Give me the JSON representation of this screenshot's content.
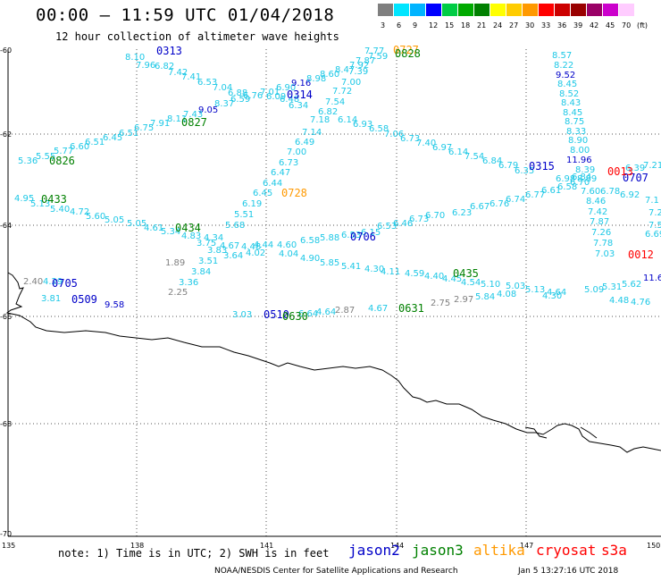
{
  "header": {
    "title": "00:00 – 11:59 UTC 01/04/2018",
    "subtitle": "12 hour collection of altimeter wave heights"
  },
  "color_scale": {
    "unit_label": "(ft)",
    "bins": [
      {
        "label": "3",
        "color": "#7f7f7f"
      },
      {
        "label": "6",
        "color": "#00e5ff"
      },
      {
        "label": "9",
        "color": "#00b4ff"
      },
      {
        "label": "12",
        "color": "#0000ff"
      },
      {
        "label": "15",
        "color": "#00cc44"
      },
      {
        "label": "18",
        "color": "#00aa00"
      },
      {
        "label": "21",
        "color": "#008000"
      },
      {
        "label": "24",
        "color": "#ffff00"
      },
      {
        "label": "27",
        "color": "#ffcc00"
      },
      {
        "label": "30",
        "color": "#ff9900"
      },
      {
        "label": "33",
        "color": "#ff0000"
      },
      {
        "label": "36",
        "color": "#cc0000"
      },
      {
        "label": "39",
        "color": "#990000"
      },
      {
        "label": "42",
        "color": "#990066"
      },
      {
        "label": "45",
        "color": "#cc00cc"
      },
      {
        "label": "70",
        "color": "#ffccff"
      }
    ]
  },
  "axes": {
    "lat_labels": [
      "-60",
      "-62",
      "-64",
      "-66",
      "-68",
      "-70"
    ],
    "lon_labels": [
      "135",
      "138",
      "141",
      "144",
      "147",
      "150"
    ]
  },
  "colors": {
    "cyan": "#1ec8e6",
    "navy": "#0000c8",
    "green": "#008000",
    "orange": "#ff9900",
    "red": "#ff0000",
    "gray": "#808080"
  },
  "wave_points": [
    [
      "8.10",
      140,
      60,
      "cyan"
    ],
    [
      "7.96",
      152,
      69,
      "cyan"
    ],
    [
      "6.82",
      173,
      70,
      "cyan"
    ],
    [
      "7.42",
      188,
      77,
      "cyan"
    ],
    [
      "7.41",
      203,
      82,
      "cyan"
    ],
    [
      "6.53",
      221,
      88,
      "cyan"
    ],
    [
      "7.04",
      238,
      94,
      "cyan"
    ],
    [
      "6.88",
      255,
      100,
      "cyan"
    ],
    [
      "6.76",
      272,
      103,
      "cyan"
    ],
    [
      "7.01",
      291,
      99,
      "cyan"
    ],
    [
      "6.90",
      309,
      94,
      "cyan"
    ],
    [
      "9.16",
      326,
      89,
      "navy"
    ],
    [
      "8.98",
      343,
      84,
      "cyan"
    ],
    [
      "8.60",
      358,
      79,
      "cyan"
    ],
    [
      "8.47",
      375,
      74,
      "cyan"
    ],
    [
      "7.92",
      391,
      69,
      "cyan"
    ],
    [
      "7.87",
      398,
      64,
      "cyan"
    ],
    [
      "7.59",
      412,
      59,
      "cyan"
    ],
    [
      "7.77",
      408,
      53,
      "cyan"
    ],
    [
      "7.39",
      390,
      76,
      "cyan"
    ],
    [
      "7.00",
      382,
      88,
      "cyan"
    ],
    [
      "7.72",
      372,
      98,
      "cyan"
    ],
    [
      "7.54",
      364,
      110,
      "cyan"
    ],
    [
      "6.82",
      356,
      121,
      "cyan"
    ],
    [
      "7.18",
      347,
      130,
      "cyan"
    ],
    [
      "7.14",
      338,
      144,
      "cyan"
    ],
    [
      "6.49",
      330,
      155,
      "cyan"
    ],
    [
      "7.00",
      321,
      166,
      "cyan"
    ],
    [
      "6.73",
      312,
      178,
      "cyan"
    ],
    [
      "6.47",
      303,
      189,
      "cyan"
    ],
    [
      "6.44",
      294,
      201,
      "cyan"
    ],
    [
      "6.45",
      283,
      212,
      "cyan"
    ],
    [
      "6.19",
      271,
      224,
      "cyan"
    ],
    [
      "5.51",
      262,
      236,
      "cyan"
    ],
    [
      "5.68",
      252,
      248,
      "cyan"
    ],
    [
      "6.34",
      323,
      114,
      "cyan"
    ],
    [
      "6.48",
      313,
      107,
      "cyan"
    ],
    [
      "6.09",
      298,
      104,
      "cyan"
    ],
    [
      "6.59",
      258,
      107,
      "cyan"
    ],
    [
      "8.37",
      240,
      112,
      "cyan"
    ],
    [
      "9.05",
      222,
      119,
      "navy"
    ],
    [
      "7.43",
      205,
      124,
      "cyan"
    ],
    [
      "8.11",
      187,
      129,
      "cyan"
    ],
    [
      "7.91",
      168,
      134,
      "cyan"
    ],
    [
      "6.75",
      150,
      139,
      "cyan"
    ],
    [
      "6.51",
      133,
      145,
      "cyan"
    ],
    [
      "6.45",
      115,
      150,
      "cyan"
    ],
    [
      "6.51",
      95,
      155,
      "cyan"
    ],
    [
      "6.60",
      78,
      160,
      "cyan"
    ],
    [
      "5.77",
      60,
      165,
      "cyan"
    ],
    [
      "5.55",
      40,
      171,
      "cyan"
    ],
    [
      "5.36",
      20,
      176,
      "cyan"
    ],
    [
      "6.14",
      378,
      130,
      "cyan"
    ],
    [
      "6.93",
      395,
      135,
      "cyan"
    ],
    [
      "6.58",
      413,
      140,
      "cyan"
    ],
    [
      "7.06",
      430,
      146,
      "cyan"
    ],
    [
      "6.73",
      448,
      151,
      "cyan"
    ],
    [
      "7.40",
      466,
      156,
      "cyan"
    ],
    [
      "6.97",
      484,
      161,
      "cyan"
    ],
    [
      "6.14",
      502,
      166,
      "cyan"
    ],
    [
      "7.54",
      520,
      171,
      "cyan"
    ],
    [
      "6.84",
      540,
      176,
      "cyan"
    ],
    [
      "6.79",
      558,
      181,
      "cyan"
    ],
    [
      "6.35",
      576,
      187,
      "cyan"
    ],
    [
      "4.95",
      16,
      218,
      "cyan"
    ],
    [
      "5.13",
      34,
      224,
      "cyan"
    ],
    [
      "5.40",
      56,
      230,
      "cyan"
    ],
    [
      "4.72",
      78,
      233,
      "cyan"
    ],
    [
      "5.60",
      96,
      238,
      "cyan"
    ],
    [
      "5.05",
      117,
      242,
      "cyan"
    ],
    [
      "5.05",
      142,
      246,
      "cyan"
    ],
    [
      "4.61",
      161,
      251,
      "cyan"
    ],
    [
      "5.34",
      180,
      255,
      "cyan"
    ],
    [
      "4.83",
      203,
      260,
      "cyan"
    ],
    [
      "4.34",
      228,
      262,
      "cyan"
    ],
    [
      "3.75",
      220,
      268,
      "cyan"
    ],
    [
      "4.67",
      246,
      271,
      "cyan"
    ],
    [
      "3.83",
      232,
      276,
      "cyan"
    ],
    [
      "4.48",
      270,
      272,
      "cyan"
    ],
    [
      "4.44",
      284,
      270,
      "cyan"
    ],
    [
      "4.60",
      310,
      270,
      "cyan"
    ],
    [
      "3.64",
      250,
      282,
      "cyan"
    ],
    [
      "4.02",
      275,
      279,
      "cyan"
    ],
    [
      "4.04",
      312,
      280,
      "cyan"
    ],
    [
      "3.51",
      222,
      288,
      "cyan"
    ],
    [
      "4.90",
      336,
      285,
      "cyan"
    ],
    [
      "3.84",
      214,
      300,
      "cyan"
    ],
    [
      "5.85",
      358,
      290,
      "cyan"
    ],
    [
      "5.41",
      382,
      294,
      "cyan"
    ],
    [
      "4.30",
      408,
      297,
      "cyan"
    ],
    [
      "4.11",
      426,
      300,
      "cyan"
    ],
    [
      "4.59",
      453,
      302,
      "cyan"
    ],
    [
      "4.40",
      475,
      305,
      "cyan"
    ],
    [
      "4.45",
      495,
      308,
      "cyan"
    ],
    [
      "4.54",
      516,
      312,
      "cyan"
    ],
    [
      "5.10",
      538,
      314,
      "cyan"
    ],
    [
      "5.03",
      566,
      316,
      "cyan"
    ],
    [
      "4.30",
      607,
      327,
      "cyan"
    ],
    [
      "5.13",
      588,
      320,
      "cyan"
    ],
    [
      "4.64",
      612,
      323,
      "cyan"
    ],
    [
      "5.09",
      654,
      320,
      "cyan"
    ],
    [
      "5.31",
      674,
      317,
      "cyan"
    ],
    [
      "5.62",
      696,
      314,
      "cyan"
    ],
    [
      "4.48",
      682,
      332,
      "cyan"
    ],
    [
      "4.76",
      706,
      334,
      "cyan"
    ],
    [
      "6.58",
      336,
      265,
      "cyan"
    ],
    [
      "5.88",
      358,
      262,
      "cyan"
    ],
    [
      "6.53",
      382,
      259,
      "cyan"
    ],
    [
      "6.15",
      404,
      256,
      "cyan"
    ],
    [
      "6.53",
      422,
      249,
      "cyan"
    ],
    [
      "6.46",
      440,
      246,
      "cyan"
    ],
    [
      "6.73",
      458,
      241,
      "cyan"
    ],
    [
      "6.70",
      476,
      237,
      "cyan"
    ],
    [
      "6.23",
      506,
      234,
      "cyan"
    ],
    [
      "6.67",
      526,
      227,
      "cyan"
    ],
    [
      "6.76",
      548,
      224,
      "cyan"
    ],
    [
      "6.74",
      566,
      219,
      "cyan"
    ],
    [
      "6.77",
      588,
      214,
      "cyan"
    ],
    [
      "6.61",
      606,
      209,
      "cyan"
    ],
    [
      "6.58",
      624,
      205,
      "cyan"
    ],
    [
      "6.70",
      638,
      200,
      "cyan"
    ],
    [
      "6.98",
      622,
      196,
      "cyan"
    ],
    [
      "6.84",
      640,
      194,
      "cyan"
    ],
    [
      "7.60",
      650,
      210,
      "cyan"
    ],
    [
      "6.78",
      672,
      210,
      "cyan"
    ],
    [
      "6.92",
      694,
      214,
      "cyan"
    ],
    [
      "7.21",
      720,
      181,
      "cyan"
    ],
    [
      "7.1",
      722,
      220,
      "cyan"
    ],
    [
      "7.2",
      726,
      234,
      "cyan"
    ],
    [
      "7.5",
      726,
      248,
      "cyan"
    ],
    [
      "6.69",
      722,
      258,
      "cyan"
    ],
    [
      "8.57",
      618,
      58,
      "cyan"
    ],
    [
      "8.22",
      620,
      69,
      "cyan"
    ],
    [
      "9.52",
      622,
      80,
      "navy"
    ],
    [
      "8.45",
      624,
      90,
      "cyan"
    ],
    [
      "8.52",
      626,
      101,
      "cyan"
    ],
    [
      "8.43",
      628,
      111,
      "cyan"
    ],
    [
      "8.45",
      630,
      122,
      "cyan"
    ],
    [
      "8.75",
      632,
      132,
      "cyan"
    ],
    [
      "8.33",
      634,
      143,
      "cyan"
    ],
    [
      "8.90",
      636,
      153,
      "cyan"
    ],
    [
      "8.00",
      638,
      164,
      "cyan"
    ],
    [
      "11.96",
      634,
      175,
      "navy"
    ],
    [
      "8.39",
      644,
      186,
      "cyan"
    ],
    [
      "8.89",
      646,
      196,
      "cyan"
    ],
    [
      "8.46",
      656,
      221,
      "cyan"
    ],
    [
      "7.42",
      658,
      233,
      "cyan"
    ],
    [
      "7.87",
      660,
      244,
      "cyan"
    ],
    [
      "7.26",
      662,
      256,
      "cyan"
    ],
    [
      "7.78",
      664,
      268,
      "cyan"
    ],
    [
      "7.03",
      666,
      280,
      "cyan"
    ],
    [
      "6.39",
      700,
      184,
      "cyan"
    ],
    [
      "1.89",
      185,
      290,
      "gray"
    ],
    [
      "2.25",
      188,
      323,
      "gray"
    ],
    [
      "3.36",
      200,
      312,
      "cyan"
    ],
    [
      "2.40",
      26,
      311,
      "gray"
    ],
    [
      "4.29",
      48,
      311,
      "cyan"
    ],
    [
      "3.81",
      46,
      330,
      "cyan"
    ],
    [
      "9.58",
      117,
      337,
      "navy"
    ],
    [
      "3.03",
      260,
      348,
      "cyan"
    ],
    [
      "4.64",
      354,
      345,
      "cyan"
    ],
    [
      "2.87",
      375,
      343,
      "gray"
    ],
    [
      "4.67",
      412,
      341,
      "cyan"
    ],
    [
      "2.75",
      482,
      335,
      "gray"
    ],
    [
      "2.97",
      508,
      331,
      "gray"
    ],
    [
      "5.84",
      532,
      328,
      "cyan"
    ],
    [
      "4.08",
      556,
      325,
      "cyan"
    ],
    [
      "11.6",
      720,
      307,
      "navy"
    ],
    [
      "6.64",
      334,
      347,
      "cyan"
    ]
  ],
  "time_labels": [
    [
      "0313",
      175,
      51,
      "navy"
    ],
    [
      "0314",
      321,
      100,
      "navy"
    ],
    [
      "0827",
      203,
      131,
      "green"
    ],
    [
      "0826",
      55,
      174,
      "green"
    ],
    [
      "0727",
      440,
      50,
      "orange"
    ],
    [
      "0828",
      442,
      54,
      "green"
    ],
    [
      "0728",
      315,
      210,
      "orange"
    ],
    [
      "0433",
      46,
      217,
      "green"
    ],
    [
      "0434",
      196,
      249,
      "green"
    ],
    [
      "0706",
      392,
      259,
      "navy"
    ],
    [
      "0315",
      592,
      180,
      "navy"
    ],
    [
      "0707",
      697,
      193,
      "navy"
    ],
    [
      "0013",
      680,
      186,
      "red"
    ],
    [
      "0012",
      703,
      279,
      "red"
    ],
    [
      "0705",
      58,
      311,
      "navy"
    ],
    [
      "0509",
      80,
      329,
      "navy"
    ],
    [
      "0435",
      507,
      300,
      "green"
    ],
    [
      "0631",
      446,
      339,
      "green"
    ],
    [
      "0510",
      295,
      346,
      "navy"
    ],
    [
      "0630",
      316,
      348,
      "green"
    ]
  ],
  "footer": {
    "note": "note: 1) Time is in UTC; 2) SWH is in feet",
    "legend": [
      {
        "label": "jason2",
        "color": "#0000c8"
      },
      {
        "label": "jason3",
        "color": "#008000"
      },
      {
        "label": "altika",
        "color": "#ff9900"
      },
      {
        "label": "cryosat",
        "color": "#ff0000"
      },
      {
        "label": "s3a",
        "color": "#ff0000"
      }
    ],
    "credit": "NOAA/NESDIS Center for Satellite Applications and Research",
    "timestamp": "Jan  5 13:27:16 UTC 2018"
  }
}
